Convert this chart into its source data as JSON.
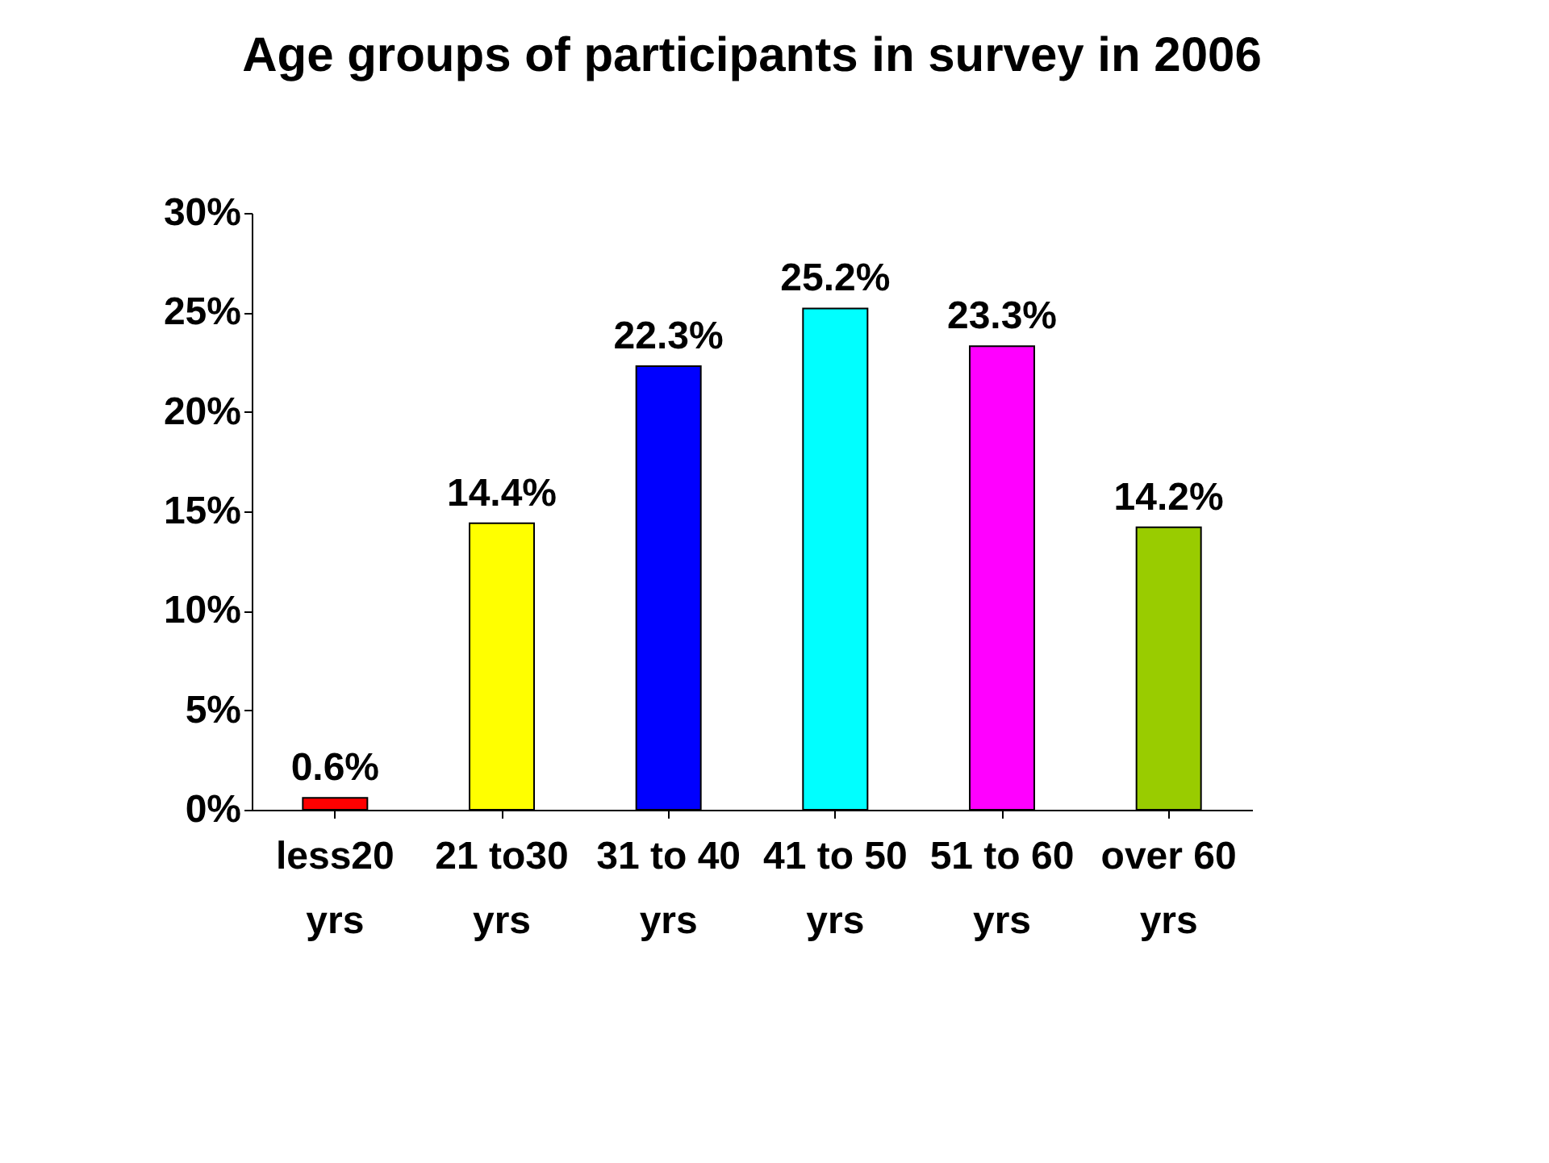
{
  "chart_data": {
    "type": "bar",
    "title": "Age groups of participants in survey in 2006",
    "categories": [
      "less20 yrs",
      "21 to30 yrs",
      "31 to 40 yrs",
      "41 to 50 yrs",
      "51 to 60 yrs",
      "over 60 yrs"
    ],
    "values": [
      0.6,
      14.4,
      22.3,
      25.2,
      23.3,
      14.2
    ],
    "colors": [
      "#ff0000",
      "#ffff00",
      "#0000ff",
      "#00ffff",
      "#ff00ff",
      "#99cc00"
    ],
    "value_labels": [
      "0.6%",
      "14.4%",
      "22.3%",
      "25.2%",
      "23.3%",
      "14.2%"
    ],
    "ylim": [
      0,
      30
    ],
    "yticks": [
      {
        "value": 0,
        "label": "0%"
      },
      {
        "value": 5,
        "label": "5%"
      },
      {
        "value": 10,
        "label": "10%"
      },
      {
        "value": 15,
        "label": "15%"
      },
      {
        "value": 20,
        "label": "20%"
      },
      {
        "value": 25,
        "label": "25%"
      },
      {
        "value": 30,
        "label": "30%"
      }
    ],
    "grid": false,
    "legend": false
  }
}
